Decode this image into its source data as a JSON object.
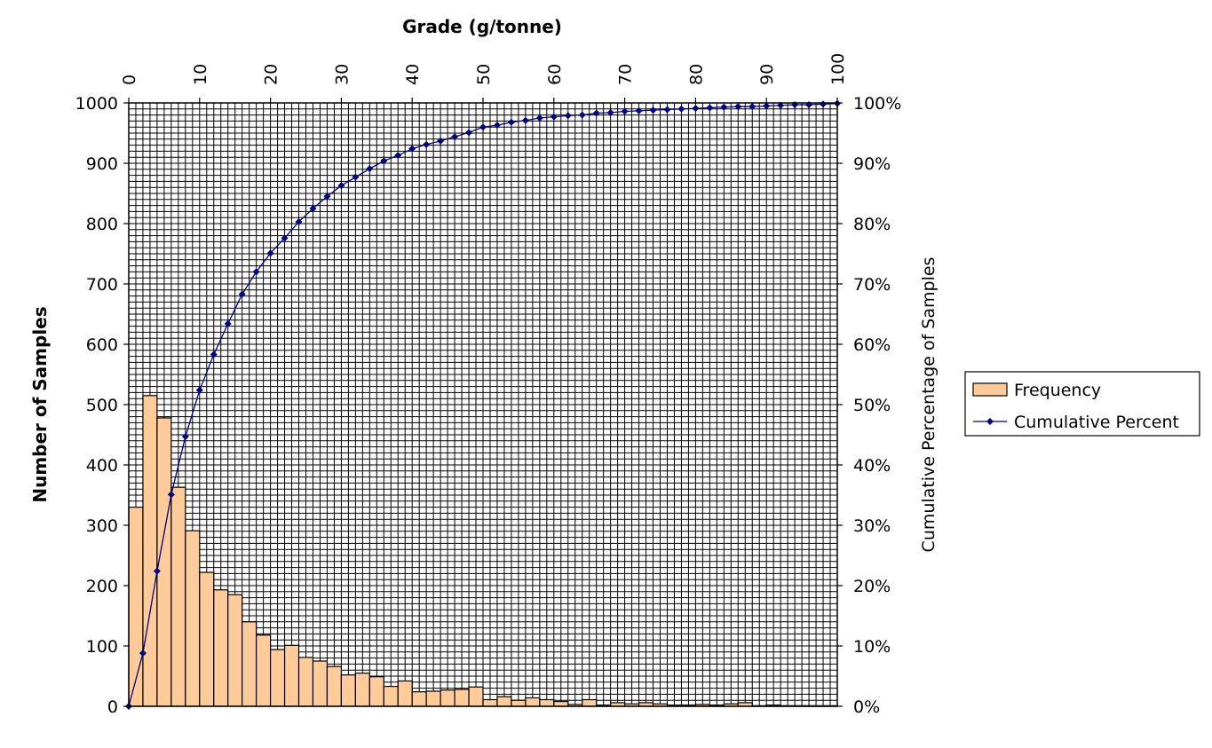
{
  "chart_data": {
    "type": "bar",
    "title": "Grade (g/tonne)",
    "xlabel": "Grade (g/tonne)",
    "ylabel": "Number of Samples",
    "y2label": "Cumulative Percentage of Samples",
    "xlim": [
      0,
      100
    ],
    "ylim": [
      0,
      1000
    ],
    "y2lim": [
      0,
      1
    ],
    "x_ticks": [
      "0",
      "10",
      "20",
      "30",
      "40",
      "50",
      "60",
      "70",
      "80",
      "90",
      "100"
    ],
    "y_ticks": [
      "0",
      "100",
      "200",
      "300",
      "400",
      "500",
      "600",
      "700",
      "800",
      "900",
      "1000"
    ],
    "y2_ticks": [
      "0%",
      "10%",
      "20%",
      "30%",
      "40%",
      "50%",
      "60%",
      "70%",
      "80%",
      "90%",
      "100%"
    ],
    "grid": true,
    "legend_position": "right",
    "bin_width": 2,
    "bins_start": [
      0,
      2,
      4,
      6,
      8,
      10,
      12,
      14,
      16,
      18,
      20,
      22,
      24,
      26,
      28,
      30,
      32,
      34,
      36,
      38,
      40,
      42,
      44,
      46,
      48,
      50,
      52,
      54,
      56,
      58,
      60,
      62,
      64,
      66,
      68,
      70,
      72,
      74,
      76,
      78,
      80,
      82,
      84,
      86,
      88,
      90,
      92,
      94,
      96,
      98
    ],
    "series": [
      {
        "name": "Frequency",
        "type": "bar",
        "color": "#FFCC99",
        "values": [
          330,
          515,
          478,
          363,
          291,
          222,
          193,
          185,
          140,
          118,
          94,
          101,
          81,
          75,
          66,
          52,
          55,
          49,
          33,
          42,
          24,
          25,
          27,
          28,
          32,
          11,
          16,
          10,
          14,
          11,
          8,
          3,
          11,
          2,
          6,
          4,
          6,
          4,
          2,
          2,
          3,
          2,
          4,
          6,
          1,
          2,
          1,
          1,
          1,
          1
        ]
      },
      {
        "name": "Cumulative Percent",
        "type": "line",
        "color": "#000080",
        "x": [
          0,
          2,
          4,
          6,
          8,
          10,
          12,
          14,
          16,
          18,
          20,
          22,
          24,
          26,
          28,
          30,
          32,
          34,
          36,
          38,
          40,
          42,
          44,
          46,
          48,
          50,
          52,
          54,
          56,
          58,
          60,
          62,
          64,
          66,
          68,
          70,
          72,
          74,
          76,
          78,
          80,
          82,
          84,
          86,
          88,
          90,
          92,
          94,
          96,
          98,
          100
        ],
        "values": [
          0,
          0.088,
          0.224,
          0.351,
          0.447,
          0.524,
          0.583,
          0.634,
          0.683,
          0.72,
          0.751,
          0.776,
          0.803,
          0.825,
          0.845,
          0.863,
          0.877,
          0.891,
          0.904,
          0.913,
          0.924,
          0.931,
          0.937,
          0.944,
          0.951,
          0.96,
          0.963,
          0.968,
          0.971,
          0.975,
          0.977,
          0.979,
          0.98,
          0.983,
          0.984,
          0.986,
          0.987,
          0.988,
          0.989,
          0.99,
          0.991,
          0.992,
          0.993,
          0.994,
          0.994,
          0.995,
          0.996,
          0.997,
          0.997,
          0.998,
          0.999
        ]
      }
    ]
  }
}
